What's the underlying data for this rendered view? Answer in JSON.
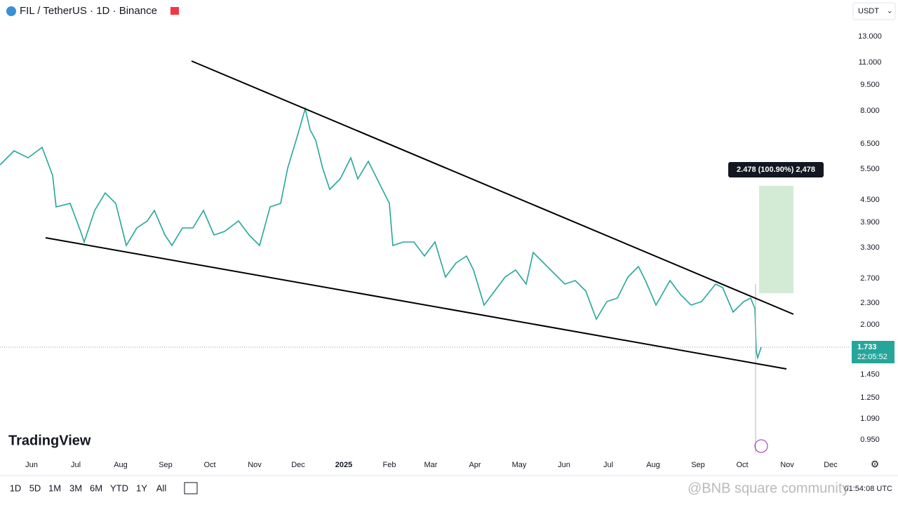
{
  "header": {
    "symbol": "FIL / TetherUS · 1D · Binance",
    "currency": "USDT"
  },
  "price_axis": [
    "13.000",
    "11.000",
    "9.500",
    "8.000",
    "6.500",
    "5.500",
    "4.500",
    "3.900",
    "3.300",
    "2.700",
    "2.300",
    "2.000",
    "1.450",
    "1.250",
    "1.090",
    "0.950"
  ],
  "time_axis": [
    "Jun",
    "Jul",
    "Aug",
    "Sep",
    "Oct",
    "Nov",
    "Dec",
    "2025",
    "Feb",
    "Mar",
    "Apr",
    "May",
    "Jun",
    "Jul",
    "Aug",
    "Sep",
    "Oct",
    "Nov",
    "Dec"
  ],
  "current_price": {
    "price": "1.733",
    "countdown": "22:05:52"
  },
  "measure_label": "2.478 (100.90%) 2,478",
  "logo": "TradingView",
  "ranges": [
    "1D",
    "5D",
    "1M",
    "3M",
    "6M",
    "YTD",
    "1Y",
    "All"
  ],
  "clock": "01:54:08 UTC",
  "watermark": "@BNB square community"
}
